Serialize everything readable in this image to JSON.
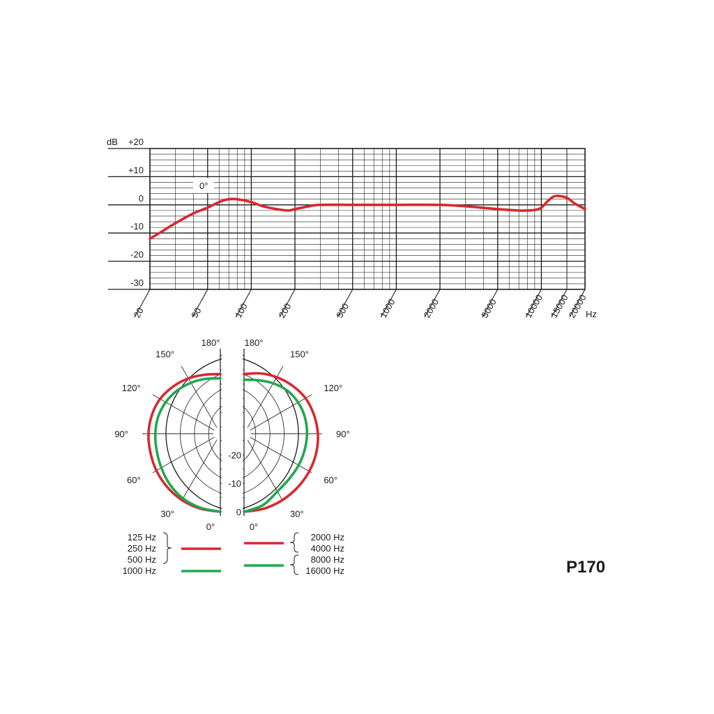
{
  "model": "P170",
  "colors": {
    "red": "#d8282f",
    "green": "#1fa84f",
    "grid": "#1a1a1a"
  },
  "chart_data": [
    {
      "type": "line",
      "name": "frequency_response",
      "ylabel": "dB",
      "xlabel": "Hz",
      "x_scale": "log",
      "xlim": [
        20,
        20000
      ],
      "ylim": [
        -30,
        20
      ],
      "y_ticks": [
        {
          "value": 20,
          "label": "+20"
        },
        {
          "value": 10,
          "label": "+10"
        },
        {
          "value": 0,
          "label": "0"
        },
        {
          "value": -10,
          "label": "-10"
        },
        {
          "value": -20,
          "label": "-20"
        },
        {
          "value": -30,
          "label": "-30"
        }
      ],
      "x_ticks": [
        {
          "value": 20,
          "label": "20"
        },
        {
          "value": 50,
          "label": "50"
        },
        {
          "value": 100,
          "label": "100"
        },
        {
          "value": 200,
          "label": "200"
        },
        {
          "value": 500,
          "label": "500"
        },
        {
          "value": 1000,
          "label": "1000"
        },
        {
          "value": 2000,
          "label": "2000"
        },
        {
          "value": 5000,
          "label": "5000"
        },
        {
          "value": 10000,
          "label": "10000"
        },
        {
          "value": 15000,
          "label": "15000"
        },
        {
          "value": 20000,
          "label": "20000"
        }
      ],
      "annotation": "0°",
      "series": [
        {
          "color": "#d8282f",
          "x": [
            20,
            25,
            30,
            40,
            50,
            60,
            70,
            80,
            100,
            120,
            150,
            180,
            200,
            250,
            300,
            500,
            1000,
            2000,
            3000,
            5000,
            7000,
            8000,
            9000,
            10000,
            11000,
            12000,
            13000,
            15000,
            17000,
            20000
          ],
          "y": [
            -12,
            -9,
            -6.5,
            -3,
            -1,
            1,
            2,
            2,
            1,
            -0.5,
            -1.5,
            -2,
            -1.5,
            -0.5,
            0,
            0,
            0,
            0,
            -0.5,
            -1.5,
            -2,
            -2,
            -1.8,
            -1,
            1.2,
            2.8,
            3.2,
            2.5,
            0.5,
            -1.5
          ]
        }
      ]
    },
    {
      "type": "polar",
      "name": "polar_pattern",
      "angle_labels": {
        "left": [
          "180°",
          "150°",
          "120°",
          "90°",
          "60°",
          "30°",
          "0°"
        ],
        "right": [
          "180°",
          "150°",
          "120°",
          "90°",
          "60°",
          "30°",
          "0°"
        ]
      },
      "radial_labels": [
        "-20",
        "-10",
        "0"
      ],
      "radial_range_db": [
        -25,
        0
      ],
      "left_series": [
        {
          "color": "#d8282f",
          "angles_deg": [
            0,
            15,
            30,
            45,
            60,
            75,
            90,
            105,
            120,
            135,
            150,
            165,
            180
          ],
          "values_db": [
            0,
            -0.2,
            -0.5,
            -1,
            -1.5,
            -2,
            -2.2,
            -2.5,
            -3,
            -4,
            -5,
            -6,
            -6.5
          ]
        },
        {
          "color": "#1fa84f",
          "angles_deg": [
            0,
            15,
            30,
            45,
            60,
            75,
            90,
            105,
            120,
            135,
            150,
            165,
            180
          ],
          "values_db": [
            0,
            -0.5,
            -1.2,
            -2.3,
            -3.5,
            -4.3,
            -4.6,
            -4.8,
            -5.3,
            -6,
            -6.8,
            -7.5,
            -8
          ]
        }
      ],
      "right_series": [
        {
          "color": "#d8282f",
          "angles_deg": [
            0,
            15,
            30,
            45,
            60,
            75,
            90,
            105,
            120,
            135,
            150,
            165,
            180
          ],
          "values_db": [
            0,
            -0.2,
            -0.5,
            -0.8,
            -1,
            -1.2,
            -1.5,
            -2,
            -2.5,
            -3.5,
            -4.5,
            -5.5,
            -6.5
          ]
        },
        {
          "color": "#1fa84f",
          "angles_deg": [
            0,
            15,
            30,
            45,
            60,
            75,
            90,
            105,
            120,
            135,
            150,
            165,
            180
          ],
          "values_db": [
            0,
            -1.5,
            -4,
            -5,
            -5.3,
            -5.4,
            -5.3,
            -5.3,
            -5.5,
            -6,
            -7,
            -8,
            -8.5
          ]
        }
      ],
      "legend": [
        {
          "side": "left",
          "color": "#d8282f",
          "labels": [
            "125 Hz",
            "250 Hz",
            "500 Hz"
          ]
        },
        {
          "side": "left",
          "color": "#1fa84f",
          "labels": [
            "1000 Hz"
          ]
        },
        {
          "side": "right",
          "color": "#d8282f",
          "labels": [
            "2000 Hz",
            "4000 Hz"
          ]
        },
        {
          "side": "right",
          "color": "#1fa84f",
          "labels": [
            "8000 Hz",
            "16000 Hz"
          ]
        }
      ]
    }
  ]
}
